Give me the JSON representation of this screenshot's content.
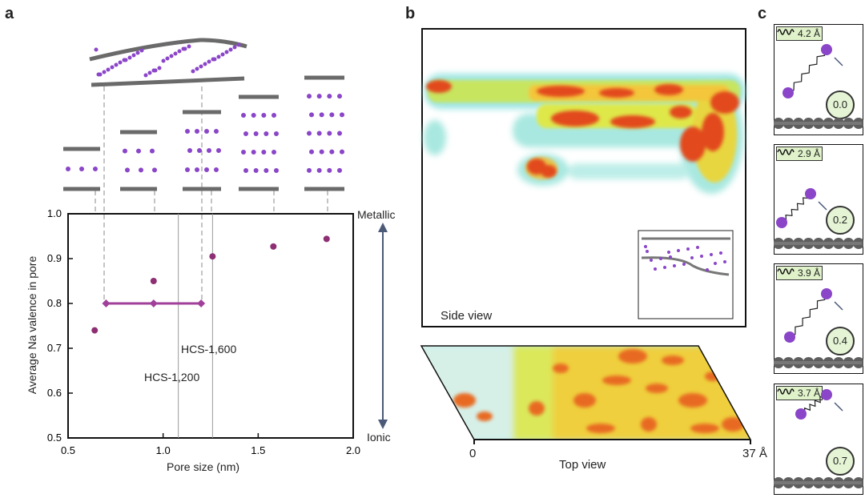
{
  "panels": {
    "a": "a",
    "b": "b",
    "c": "c"
  },
  "panel_a": {
    "xlabel": "Pore size (nm)",
    "ylabel": "Average Na valence in pore",
    "side_top": "Metallic",
    "side_bottom": "Ionic",
    "hcs_1200": "HCS-1,200",
    "hcs_1600": "HCS-1,600"
  },
  "chart_data": {
    "type": "scatter",
    "xlabel": "Pore size (nm)",
    "ylabel": "Average Na valence in pore",
    "xlim": [
      0.5,
      2.0
    ],
    "ylim": [
      0.5,
      1.0
    ],
    "xticks": [
      "0.5",
      "1.0",
      "1.5",
      "2.0"
    ],
    "yticks": [
      "0.5",
      "0.6",
      "0.7",
      "0.8",
      "0.9",
      "1.0"
    ],
    "series": [
      {
        "x": [
          0.64,
          0.95,
          1.26,
          1.58,
          1.86
        ],
        "y": [
          0.74,
          0.85,
          0.905,
          0.927,
          0.944
        ]
      },
      {
        "x": [
          0.7,
          0.95,
          1.2
        ],
        "y": [
          0.8,
          0.8,
          0.8
        ]
      }
    ],
    "vlines": [
      1.08,
      1.26
    ],
    "grid": false
  },
  "panel_b": {
    "side_view": "Side view",
    "top_view": "Top view",
    "axis_start": "0",
    "axis_end": "37 Å"
  },
  "panel_c": {
    "frames": [
      {
        "distance": "4.2 Å",
        "time": "0.0"
      },
      {
        "distance": "2.9 Å",
        "time": "0.2"
      },
      {
        "distance": "3.9 Å",
        "time": "0.4"
      },
      {
        "distance": "3.7 Å",
        "time": "0.7"
      }
    ]
  },
  "colors": {
    "scatter": "#8e2f73",
    "range_line": "#a0409a",
    "na_atom": "#8a45c8",
    "carbon": "#666666",
    "arrow": "#4b5a78"
  }
}
